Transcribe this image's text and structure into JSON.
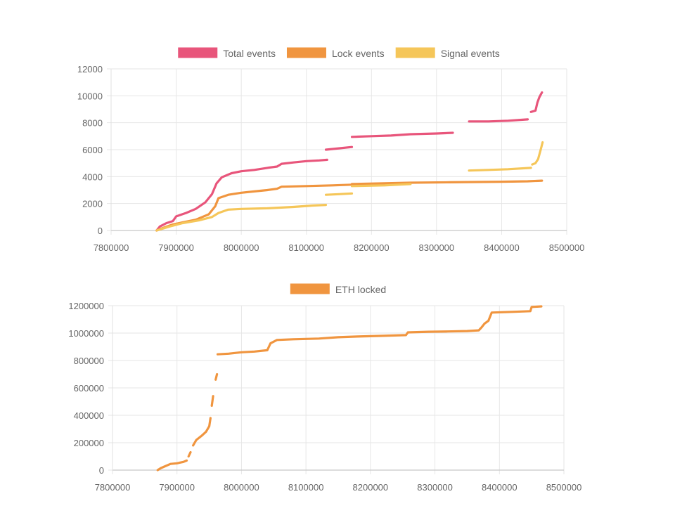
{
  "chart_data": [
    {
      "type": "scatter",
      "legend": [
        {
          "label": "Total events",
          "color": "#e8557b"
        },
        {
          "label": "Lock events",
          "color": "#f0953f"
        },
        {
          "label": "Signal events",
          "color": "#f5c659"
        }
      ],
      "legend_position": "top-center",
      "grid": true,
      "xlim": [
        7800000,
        8500000
      ],
      "ylim": [
        0,
        12000
      ],
      "x_ticks": [
        "7800000",
        "7900000",
        "8000000",
        "8100000",
        "8200000",
        "8300000",
        "8400000",
        "8500000"
      ],
      "y_ticks": [
        "0",
        "2000",
        "4000",
        "6000",
        "8000",
        "10000",
        "12000"
      ],
      "series": [
        {
          "name": "Total events",
          "color": "#e8557b",
          "segments": [
            [
              [
                7870000,
                0
              ],
              [
                7875000,
                300
              ],
              [
                7885000,
                550
              ],
              [
                7895000,
                700
              ],
              [
                7900000,
                1050
              ],
              [
                7915000,
                1300
              ],
              [
                7930000,
                1600
              ],
              [
                7945000,
                2100
              ],
              [
                7955000,
                2700
              ],
              [
                7962000,
                3500
              ],
              [
                7970000,
                3950
              ],
              [
                7985000,
                4250
              ],
              [
                8000000,
                4400
              ],
              [
                8020000,
                4500
              ],
              [
                8040000,
                4650
              ],
              [
                8055000,
                4750
              ],
              [
                8062000,
                4950
              ],
              [
                8080000,
                5050
              ],
              [
                8100000,
                5150
              ],
              [
                8120000,
                5200
              ],
              [
                8132000,
                5250
              ]
            ],
            [
              [
                8130000,
                6000
              ],
              [
                8150000,
                6100
              ],
              [
                8170000,
                6200
              ]
            ],
            [
              [
                8170000,
                6950
              ],
              [
                8200000,
                7000
              ],
              [
                8230000,
                7050
              ],
              [
                8260000,
                7150
              ],
              [
                8300000,
                7200
              ],
              [
                8325000,
                7250
              ]
            ],
            [
              [
                8350000,
                8100
              ],
              [
                8380000,
                8100
              ],
              [
                8410000,
                8150
              ],
              [
                8440000,
                8250
              ]
            ],
            [
              [
                8445000,
                8800
              ],
              [
                8452000,
                8900
              ],
              [
                8455000,
                9500
              ],
              [
                8458000,
                9900
              ],
              [
                8462000,
                10250
              ]
            ]
          ]
        },
        {
          "name": "Lock events",
          "color": "#f0953f",
          "segments": [
            [
              [
                7870000,
                0
              ],
              [
                7880000,
                200
              ],
              [
                7895000,
                450
              ],
              [
                7910000,
                600
              ],
              [
                7930000,
                800
              ],
              [
                7950000,
                1200
              ],
              [
                7960000,
                1800
              ],
              [
                7965000,
                2400
              ],
              [
                7980000,
                2650
              ],
              [
                8000000,
                2800
              ],
              [
                8020000,
                2900
              ],
              [
                8040000,
                3000
              ],
              [
                8055000,
                3100
              ],
              [
                8062000,
                3250
              ],
              [
                8100000,
                3300
              ],
              [
                8140000,
                3350
              ],
              [
                8170000,
                3400
              ]
            ],
            [
              [
                8170000,
                3450
              ],
              [
                8220000,
                3500
              ],
              [
                8260000,
                3550
              ],
              [
                8320000,
                3580
              ],
              [
                8360000,
                3600
              ],
              [
                8400000,
                3620
              ],
              [
                8440000,
                3650
              ],
              [
                8462000,
                3700
              ]
            ]
          ]
        },
        {
          "name": "Signal events",
          "color": "#f5c659",
          "segments": [
            [
              [
                7870000,
                0
              ],
              [
                7890000,
                300
              ],
              [
                7910000,
                550
              ],
              [
                7935000,
                750
              ],
              [
                7955000,
                1000
              ],
              [
                7965000,
                1300
              ],
              [
                7980000,
                1550
              ],
              [
                8000000,
                1600
              ],
              [
                8040000,
                1650
              ],
              [
                8080000,
                1750
              ],
              [
                8110000,
                1850
              ],
              [
                8130000,
                1900
              ]
            ],
            [
              [
                8130000,
                2650
              ],
              [
                8150000,
                2700
              ],
              [
                8170000,
                2750
              ]
            ],
            [
              [
                8170000,
                3300
              ],
              [
                8220000,
                3350
              ],
              [
                8260000,
                3450
              ]
            ],
            [
              [
                8350000,
                4450
              ],
              [
                8380000,
                4500
              ],
              [
                8410000,
                4550
              ],
              [
                8445000,
                4650
              ]
            ],
            [
              [
                8447000,
                4900
              ],
              [
                8452000,
                5000
              ],
              [
                8456000,
                5300
              ],
              [
                8460000,
                6000
              ],
              [
                8463000,
                6550
              ]
            ]
          ]
        }
      ]
    },
    {
      "type": "scatter",
      "legend": [
        {
          "label": "ETH locked",
          "color": "#f0953f"
        }
      ],
      "legend_position": "top-center",
      "grid": true,
      "xlim": [
        7800000,
        8500000
      ],
      "ylim": [
        0,
        1200000
      ],
      "x_ticks": [
        "7800000",
        "7900000",
        "8000000",
        "8100000",
        "8200000",
        "8300000",
        "8400000",
        "8500000"
      ],
      "y_ticks": [
        "0",
        "200000",
        "400000",
        "600000",
        "800000",
        "1000000",
        "1200000"
      ],
      "series": [
        {
          "name": "ETH locked",
          "color": "#f0953f",
          "segments": [
            [
              [
                7870000,
                0
              ],
              [
                7875000,
                15000
              ],
              [
                7880000,
                25000
              ],
              [
                7890000,
                45000
              ],
              [
                7900000,
                50000
              ],
              [
                7910000,
                60000
              ],
              [
                7915000,
                70000
              ]
            ],
            [
              [
                7918000,
                100000
              ],
              [
                7921000,
                130000
              ]
            ],
            [
              [
                7925000,
                180000
              ],
              [
                7930000,
                220000
              ],
              [
                7938000,
                250000
              ],
              [
                7945000,
                280000
              ],
              [
                7950000,
                320000
              ],
              [
                7952000,
                380000
              ]
            ],
            [
              [
                7954000,
                470000
              ],
              [
                7956000,
                540000
              ]
            ],
            [
              [
                7960000,
                660000
              ],
              [
                7962000,
                700000
              ]
            ],
            [
              [
                7963000,
                845000
              ],
              [
                7980000,
                850000
              ],
              [
                8000000,
                860000
              ],
              [
                8020000,
                865000
              ],
              [
                8040000,
                875000
              ],
              [
                8045000,
                925000
              ],
              [
                8055000,
                950000
              ],
              [
                8080000,
                955000
              ],
              [
                8120000,
                960000
              ],
              [
                8150000,
                970000
              ],
              [
                8180000,
                975000
              ],
              [
                8220000,
                980000
              ],
              [
                8255000,
                985000
              ],
              [
                8258000,
                1005000
              ],
              [
                8290000,
                1010000
              ],
              [
                8320000,
                1012000
              ],
              [
                8350000,
                1015000
              ],
              [
                8368000,
                1020000
              ],
              [
                8372000,
                1040000
              ],
              [
                8377000,
                1070000
              ],
              [
                8383000,
                1090000
              ],
              [
                8388000,
                1150000
              ],
              [
                8420000,
                1155000
              ],
              [
                8448000,
                1160000
              ],
              [
                8450000,
                1190000
              ],
              [
                8465000,
                1195000
              ]
            ]
          ]
        }
      ]
    }
  ]
}
